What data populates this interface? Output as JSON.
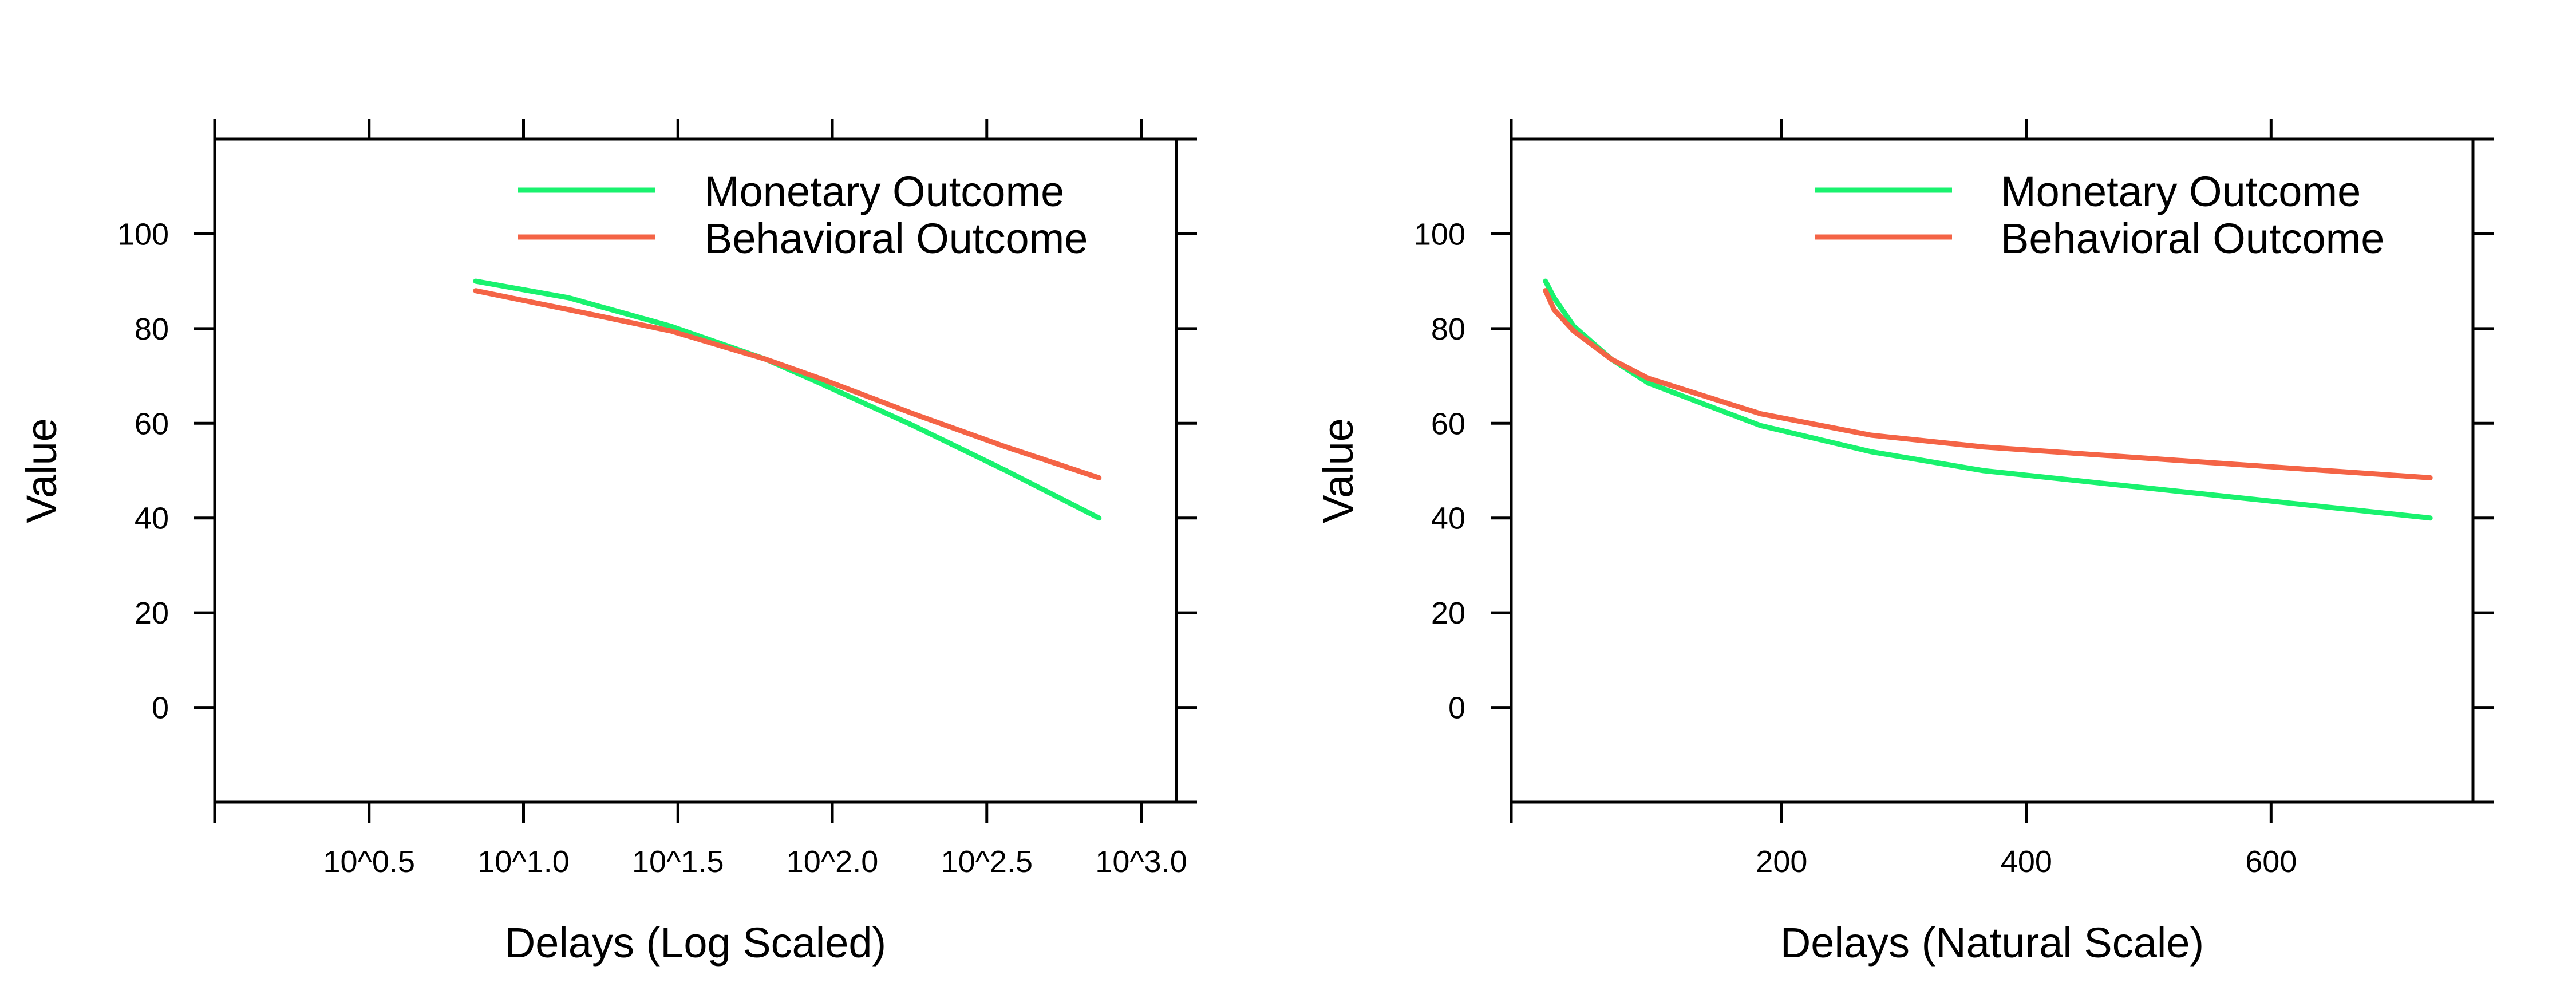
{
  "colors": {
    "monetary": "#19F26E",
    "behavioral": "#F46446"
  },
  "chart_data": [
    {
      "type": "line",
      "x_scale": "log10",
      "xlabel": "Delays (Log Scaled)",
      "ylabel": "Value",
      "xlim": [
        1,
        1300
      ],
      "ylim": [
        -20,
        120
      ],
      "x_ticks": [
        {
          "value": 3.1623,
          "label": "10^0.5"
        },
        {
          "value": 10,
          "label": "10^1.0"
        },
        {
          "value": 31.623,
          "label": "10^1.5"
        },
        {
          "value": 100,
          "label": "10^2.0"
        },
        {
          "value": 316.23,
          "label": "10^2.5"
        },
        {
          "value": 1000,
          "label": "10^3.0"
        }
      ],
      "x_top_ticks": [
        3.1623,
        10,
        31.623,
        100,
        316.23,
        1000
      ],
      "y_ticks": [
        0,
        20,
        40,
        60,
        80,
        100
      ],
      "grid": false,
      "legend": "top-right",
      "series": [
        {
          "name": "Monetary Outcome",
          "color_key": "monetary",
          "x": [
            7,
            14,
            30,
            61,
            91,
            183,
            365,
            730
          ],
          "y": [
            90,
            86.5,
            80.5,
            73.5,
            68.5,
            59.5,
            50,
            40
          ]
        },
        {
          "name": "Behavioral Outcome",
          "color_key": "behavioral",
          "x": [
            7,
            14,
            30,
            61,
            91,
            183,
            365,
            730
          ],
          "y": [
            88,
            84,
            79.5,
            73.5,
            69.5,
            62,
            55,
            48.5
          ]
        }
      ]
    },
    {
      "type": "line",
      "x_scale": "linear",
      "xlabel": "Delays (Natural Scale)",
      "ylabel": "Value",
      "xlim": [
        -21,
        765
      ],
      "ylim": [
        -20,
        120
      ],
      "x_ticks": [
        {
          "value": 200,
          "label": "200"
        },
        {
          "value": 400,
          "label": "400"
        },
        {
          "value": 600,
          "label": "600"
        }
      ],
      "x_top_ticks": [
        200,
        400,
        600
      ],
      "y_ticks": [
        0,
        20,
        40,
        60,
        80,
        100
      ],
      "grid": false,
      "legend": "top-right",
      "series": [
        {
          "name": "Monetary Outcome",
          "color_key": "monetary",
          "x": [
            7,
            14,
            30,
            61,
            91,
            183,
            273,
            365,
            730
          ],
          "y": [
            90,
            86.5,
            80.5,
            73.5,
            68.5,
            59.5,
            54,
            50,
            40
          ]
        },
        {
          "name": "Behavioral Outcome",
          "color_key": "behavioral",
          "x": [
            7,
            14,
            30,
            61,
            91,
            183,
            273,
            365,
            730
          ],
          "y": [
            88,
            84,
            79.5,
            73.5,
            69.5,
            62,
            57.5,
            55,
            48.5
          ]
        }
      ]
    }
  ]
}
